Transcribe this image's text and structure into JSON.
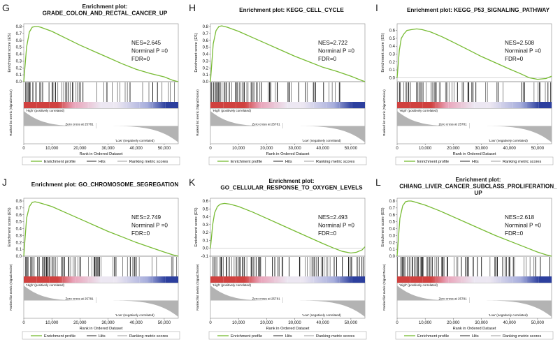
{
  "chart_data": [
    {
      "panel_label": "G",
      "type": "line",
      "title_lines": [
        "Enrichment plot:",
        "GRADE_COLON_AND_RECTAL_CANCER_UP"
      ],
      "stats": [
        "NES=2.645",
        "Norminal P =0",
        "FDR=0"
      ],
      "ylabel": "Enrichment score (ES)",
      "ylim": [
        0,
        0.8
      ],
      "yticks": [
        "0.0",
        "0.1",
        "0.2",
        "0.3",
        "0.4",
        "0.5",
        "0.6",
        "0.7",
        "0.8"
      ],
      "xlabel": "Rank in Ordered Dataset",
      "xlim": [
        0,
        55000
      ],
      "xticks": [
        "0",
        "10,000",
        "20,000",
        "30,000",
        "40,000",
        "50,000"
      ],
      "es_curve": {
        "x": [
          0,
          1000,
          2000,
          3000,
          4000,
          5000,
          6000,
          10000,
          15000,
          20000,
          25000,
          30000,
          35000,
          40000,
          45000,
          50000,
          53000,
          55000
        ],
        "y": [
          0,
          0.5,
          0.72,
          0.79,
          0.8,
          0.8,
          0.79,
          0.73,
          0.63,
          0.53,
          0.44,
          0.35,
          0.26,
          0.18,
          0.12,
          0.07,
          0.02,
          0.0
        ]
      },
      "hits_density": [
        1,
        0.95,
        0.9,
        0.75,
        0.6,
        0.5,
        0.4,
        0.35,
        0.3,
        0.25,
        0.2,
        0.15
      ],
      "ranked_metric_label": "Ranked list metric (Signal2Noise)",
      "pos_label": "'High' (positively correlated)",
      "neg_label": "'Low' (negatively correlated)",
      "zero_cross": "Zero cross at 25781",
      "legend": [
        "Enrichment profile",
        "Hits",
        "Ranking metric scores"
      ]
    },
    {
      "panel_label": "H",
      "type": "line",
      "title_lines": [
        "Enrichment plot: KEGG_CELL_CYCLE"
      ],
      "stats": [
        "NES=2.722",
        "Norminal P =0",
        "FDR=0"
      ],
      "ylabel": "Enrichment score (ES)",
      "ylim": [
        0,
        0.8
      ],
      "yticks": [
        "0.0",
        "0.1",
        "0.2",
        "0.3",
        "0.4",
        "0.5",
        "0.6",
        "0.7",
        "0.8"
      ],
      "xlabel": "Rank in Ordered Dataset",
      "xlim": [
        0,
        55000
      ],
      "xticks": [
        "0",
        "10,000",
        "20,000",
        "30,000",
        "40,000",
        "50,000"
      ],
      "es_curve": {
        "x": [
          0,
          1000,
          2000,
          3000,
          4000,
          5000,
          6000,
          10000,
          15000,
          20000,
          25000,
          30000,
          35000,
          40000,
          45000,
          50000,
          53000,
          55000
        ],
        "y": [
          0,
          0.55,
          0.74,
          0.8,
          0.81,
          0.8,
          0.79,
          0.73,
          0.64,
          0.55,
          0.46,
          0.37,
          0.29,
          0.21,
          0.15,
          0.08,
          0.03,
          0.0
        ]
      },
      "hits_density": [
        1,
        0.95,
        0.85,
        0.7,
        0.55,
        0.45,
        0.4,
        0.35,
        0.3,
        0.25,
        0.25,
        0.2
      ],
      "ranked_metric_label": "Ranked list metric (Signal2Noise)",
      "pos_label": "'High' (positively correlated)",
      "neg_label": "'Low' (negatively correlated)",
      "zero_cross": "Zero cross at 25781",
      "legend": [
        "Enrichment profile",
        "Hits",
        "Ranking metric scores"
      ]
    },
    {
      "panel_label": "I",
      "type": "line",
      "title_lines": [
        "Enrichment plot: KEGG_P53_SIGNALING_PATHWAY"
      ],
      "stats": [
        "NES=2.508",
        "Norminal P =0",
        "FDR=0"
      ],
      "ylabel": "Enrichment score (ES)",
      "ylim": [
        -0.05,
        0.65
      ],
      "yticks": [
        "0.0",
        "0.1",
        "0.2",
        "0.3",
        "0.4",
        "0.5",
        "0.6"
      ],
      "xlabel": "Rank in Ordered Dataset",
      "xlim": [
        0,
        55000
      ],
      "xticks": [
        "0",
        "10,000",
        "20,000",
        "30,000",
        "40,000",
        "50,000"
      ],
      "es_curve": {
        "x": [
          0,
          800,
          1500,
          2500,
          3500,
          5000,
          7000,
          9000,
          12000,
          16000,
          20000,
          25000,
          30000,
          35000,
          40000,
          44000,
          47000,
          50000,
          53000,
          55000
        ],
        "y": [
          0,
          0.35,
          0.5,
          0.56,
          0.6,
          0.61,
          0.62,
          0.61,
          0.58,
          0.52,
          0.45,
          0.36,
          0.27,
          0.19,
          0.11,
          0.05,
          0.0,
          -0.02,
          -0.01,
          0.02
        ]
      },
      "hits_density": [
        1,
        0.9,
        0.8,
        0.7,
        0.6,
        0.5,
        0.45,
        0.4,
        0.35,
        0.3,
        0.3,
        0.3
      ],
      "ranked_metric_label": "Ranked list metric (Signal2Noise)",
      "pos_label": "'High' (positively correlated)",
      "neg_label": "'Low' (negatively correlated)",
      "zero_cross": "Zero cross at 25781",
      "legend": [
        "Enrichment profile",
        "Hits",
        "Ranking metric scores"
      ]
    },
    {
      "panel_label": "J",
      "type": "line",
      "title_lines": [
        "Enrichment plot: GO_CHROMOSOME_SEGREGATION"
      ],
      "stats": [
        "NES=2.749",
        "Norminal P =0",
        "FDR=0"
      ],
      "ylabel": "Enrichment score (ES)",
      "ylim": [
        0,
        0.8
      ],
      "yticks": [
        "0.0",
        "0.1",
        "0.2",
        "0.3",
        "0.4",
        "0.5",
        "0.6",
        "0.7",
        "0.8"
      ],
      "xlabel": "Rank in Ordered Dataset",
      "xlim": [
        0,
        55000
      ],
      "xticks": [
        "0",
        "10,000",
        "20,000",
        "30,000",
        "40,000",
        "50,000"
      ],
      "es_curve": {
        "x": [
          0,
          1000,
          2000,
          3000,
          4000,
          5000,
          6000,
          10000,
          15000,
          20000,
          25000,
          30000,
          35000,
          40000,
          45000,
          50000,
          53000,
          55000
        ],
        "y": [
          0,
          0.55,
          0.72,
          0.78,
          0.79,
          0.78,
          0.77,
          0.72,
          0.63,
          0.54,
          0.45,
          0.36,
          0.28,
          0.2,
          0.13,
          0.06,
          0.02,
          0.0
        ]
      },
      "hits_density": [
        1,
        1,
        0.95,
        0.85,
        0.7,
        0.6,
        0.5,
        0.45,
        0.4,
        0.35,
        0.3,
        0.25
      ],
      "ranked_metric_label": "Ranked list metric (Signal2Noise)",
      "pos_label": "'High' (positively correlated)",
      "neg_label": "'Low' (negatively correlated)",
      "zero_cross": "Zero cross at 25781",
      "legend": [
        "Enrichment profile",
        "Hits",
        "Ranking metric scores"
      ]
    },
    {
      "panel_label": "K",
      "type": "line",
      "title_lines": [
        "Enrichment plot:",
        "GO_CELLULAR_RESPONSE_TO_OXYGEN_LEVELS"
      ],
      "stats": [
        "NES=2.493",
        "Norminal P =0",
        "FDR=0"
      ],
      "ylabel": "Enrichment score (ES)",
      "ylim": [
        -0.1,
        0.6
      ],
      "yticks": [
        "-0.1",
        "0.0",
        "0.1",
        "0.2",
        "0.3",
        "0.4",
        "0.5",
        "0.6"
      ],
      "xlabel": "Rank in Ordered Dataset",
      "xlim": [
        0,
        55000
      ],
      "xticks": [
        "0",
        "10,000",
        "20,000",
        "30,000",
        "40,000",
        "50,000"
      ],
      "es_curve": {
        "x": [
          0,
          800,
          1500,
          2500,
          3500,
          5000,
          7000,
          10000,
          15000,
          20000,
          25000,
          30000,
          35000,
          40000,
          44000,
          47000,
          50000,
          52000,
          54000,
          55000
        ],
        "y": [
          0,
          0.3,
          0.45,
          0.53,
          0.56,
          0.57,
          0.56,
          0.53,
          0.46,
          0.38,
          0.3,
          0.22,
          0.14,
          0.06,
          0.0,
          -0.04,
          -0.06,
          -0.05,
          -0.02,
          0.02
        ]
      },
      "hits_density": [
        1,
        0.9,
        0.8,
        0.75,
        0.65,
        0.6,
        0.55,
        0.5,
        0.5,
        0.55,
        0.6,
        0.7
      ],
      "ranked_metric_label": "Ranked list metric (Signal2Noise)",
      "pos_label": "'High' (positively correlated)",
      "neg_label": "'Low' (negatively correlated)",
      "zero_cross": "Zero cross at 25781",
      "legend": [
        "Enrichment profile",
        "Hits",
        "Ranking metric scores"
      ]
    },
    {
      "panel_label": "L",
      "type": "line",
      "title_lines": [
        "Enrichment plot:",
        "CHIANG_LIVER_CANCER_SUBCLASS_PROLIFERATION_",
        "UP"
      ],
      "stats": [
        "NES=2.618",
        "Norminal P =0",
        "FDR=0"
      ],
      "ylabel": "Enrichment score (ES)",
      "ylim": [
        0,
        0.8
      ],
      "yticks": [
        "0.0",
        "0.1",
        "0.2",
        "0.3",
        "0.4",
        "0.5",
        "0.6",
        "0.7",
        "0.8"
      ],
      "xlabel": "Rank in Ordered Dataset",
      "xlim": [
        0,
        55000
      ],
      "xticks": [
        "0",
        "10,000",
        "20,000",
        "30,000",
        "40,000",
        "50,000"
      ],
      "es_curve": {
        "x": [
          0,
          1000,
          2000,
          3000,
          4000,
          5000,
          6000,
          10000,
          15000,
          20000,
          25000,
          30000,
          35000,
          40000,
          45000,
          50000,
          53000,
          55000
        ],
        "y": [
          0,
          0.55,
          0.73,
          0.79,
          0.8,
          0.8,
          0.79,
          0.74,
          0.66,
          0.57,
          0.48,
          0.39,
          0.3,
          0.22,
          0.14,
          0.06,
          0.02,
          0.0
        ]
      },
      "hits_density": [
        1,
        0.95,
        0.9,
        0.8,
        0.65,
        0.5,
        0.45,
        0.4,
        0.35,
        0.3,
        0.25,
        0.2
      ],
      "ranked_metric_label": "Ranked list metric (Signal2Noise)",
      "pos_label": "'High' (positively correlated)",
      "neg_label": "'Low' (negatively correlated)",
      "zero_cross": "Zero cross at 25781",
      "legend": [
        "Enrichment profile",
        "Hits",
        "Ranking metric scores"
      ]
    }
  ],
  "colors": {
    "es_line": "#77bb33",
    "hits": "#111111",
    "metric_fill": "#b3b3b3",
    "pos_band": "#d0413f",
    "pink_band": "#e9a2b8",
    "light_band": "#ece7f2",
    "blue_band": "#a6addc",
    "dark_blue_band": "#2c3f9e",
    "frame": "#888888"
  }
}
